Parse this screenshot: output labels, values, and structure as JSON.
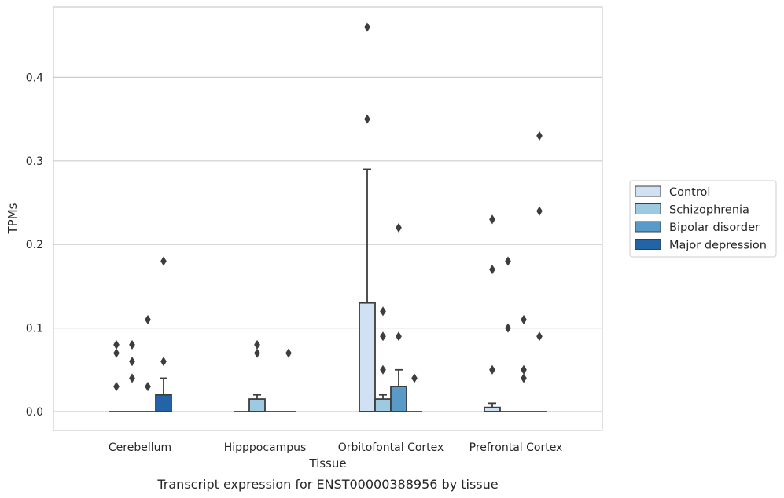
{
  "caption": "Transcript expression for ENST00000388956 by tissue",
  "chart_data": {
    "type": "box",
    "xlabel": "Tissue",
    "ylabel": "TPMs",
    "ylim": [
      -0.022,
      0.485
    ],
    "yticks": [
      0.0,
      0.1,
      0.2,
      0.3,
      0.4
    ],
    "ytick_labels": [
      "0.0",
      "0.1",
      "0.2",
      "0.3",
      "0.4"
    ],
    "grid": "horizontal",
    "legend_position": "right",
    "categories": [
      "Cerebellum",
      "Hipppocampus",
      "Orbitofontal Cortex",
      "Prefrontal Cortex"
    ],
    "series": [
      {
        "name": "Control",
        "color": "#cfe1f2",
        "boxes": [
          {
            "q1": 0,
            "median": 0,
            "q3": 0,
            "whisker_low": 0,
            "whisker_high": 0,
            "outliers": [
              0.03,
              0.07,
              0.08
            ]
          },
          {
            "q1": 0,
            "median": 0,
            "q3": 0,
            "whisker_low": 0,
            "whisker_high": 0,
            "outliers": []
          },
          {
            "q1": 0,
            "median": 0,
            "q3": 0.13,
            "whisker_low": 0,
            "whisker_high": 0.29,
            "outliers": [
              0.35,
              0.46
            ]
          },
          {
            "q1": 0,
            "median": 0,
            "q3": 0.005,
            "whisker_low": 0,
            "whisker_high": 0.01,
            "outliers": [
              0.05,
              0.17,
              0.23
            ]
          }
        ]
      },
      {
        "name": "Schizophrenia",
        "color": "#9ecae1",
        "boxes": [
          {
            "q1": 0,
            "median": 0,
            "q3": 0,
            "whisker_low": 0,
            "whisker_high": 0,
            "outliers": [
              0.04,
              0.06,
              0.08
            ]
          },
          {
            "q1": 0,
            "median": 0,
            "q3": 0.015,
            "whisker_low": 0,
            "whisker_high": 0.02,
            "outliers": [
              0.07,
              0.08
            ]
          },
          {
            "q1": 0,
            "median": 0,
            "q3": 0.015,
            "whisker_low": 0,
            "whisker_high": 0.02,
            "outliers": [
              0.05,
              0.09,
              0.12
            ]
          },
          {
            "q1": 0,
            "median": 0,
            "q3": 0,
            "whisker_low": 0,
            "whisker_high": 0,
            "outliers": [
              0.1,
              0.18
            ]
          }
        ]
      },
      {
        "name": "Bipolar disorder",
        "color": "#5a9ac8",
        "boxes": [
          {
            "q1": 0,
            "median": 0,
            "q3": 0,
            "whisker_low": 0,
            "whisker_high": 0,
            "outliers": [
              0.03,
              0.11
            ]
          },
          {
            "q1": 0,
            "median": 0,
            "q3": 0,
            "whisker_low": 0,
            "whisker_high": 0,
            "outliers": []
          },
          {
            "q1": 0,
            "median": 0,
            "q3": 0.03,
            "whisker_low": 0,
            "whisker_high": 0.05,
            "outliers": [
              0.09,
              0.22
            ]
          },
          {
            "q1": 0,
            "median": 0,
            "q3": 0,
            "whisker_low": 0,
            "whisker_high": 0,
            "outliers": [
              0.04,
              0.05,
              0.11
            ]
          }
        ]
      },
      {
        "name": "Major depression",
        "color": "#2364a6",
        "boxes": [
          {
            "q1": 0,
            "median": 0,
            "q3": 0.02,
            "whisker_low": 0,
            "whisker_high": 0.04,
            "outliers": [
              0.06,
              0.18
            ]
          },
          {
            "q1": 0,
            "median": 0,
            "q3": 0,
            "whisker_low": 0,
            "whisker_high": 0,
            "outliers": [
              0.07
            ]
          },
          {
            "q1": 0,
            "median": 0,
            "q3": 0,
            "whisker_low": 0,
            "whisker_high": 0,
            "outliers": [
              0.04
            ]
          },
          {
            "q1": 0,
            "median": 0,
            "q3": 0,
            "whisker_low": 0,
            "whisker_high": 0,
            "outliers": [
              0.09,
              0.24,
              0.33
            ]
          }
        ]
      }
    ]
  }
}
